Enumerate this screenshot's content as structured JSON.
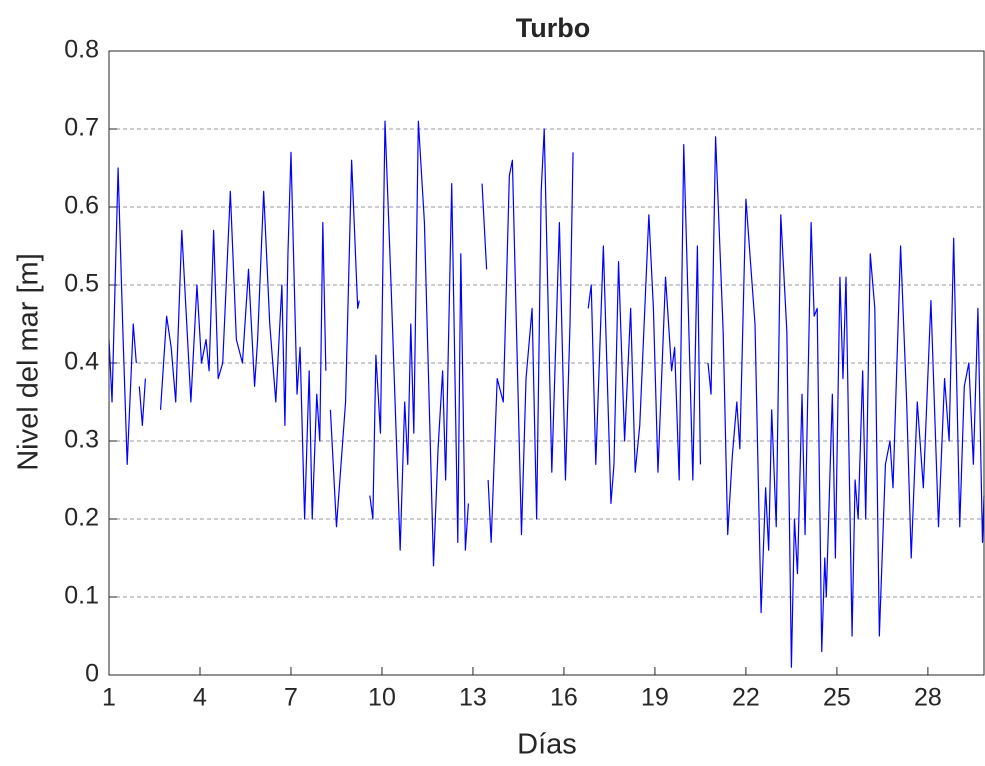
{
  "chart_data": {
    "type": "line",
    "title": "Turbo",
    "x_label": "Días",
    "y_label": "Nivel del mar [m]",
    "color": "#0000ff",
    "grid": true,
    "xlim": [
      1,
      29.85
    ],
    "xticks": [
      1,
      4,
      7,
      10,
      13,
      16,
      19,
      22,
      25,
      28
    ],
    "ylim": [
      0,
      0.8
    ],
    "yticks": [
      0,
      0.1,
      0.2,
      0.3,
      0.4,
      0.5,
      0.6,
      0.7,
      0.8
    ],
    "x": [
      1.0,
      1.1,
      1.3,
      1.45,
      1.6,
      1.8,
      1.9,
      1.95,
      2.0,
      2.1,
      2.2,
      2.4,
      2.7,
      2.9,
      3.05,
      3.2,
      3.4,
      3.7,
      3.9,
      4.05,
      4.2,
      4.3,
      4.45,
      4.6,
      4.75,
      5.0,
      5.2,
      5.4,
      5.6,
      5.8,
      5.9,
      6.1,
      6.3,
      6.5,
      6.7,
      6.8,
      6.9,
      7.0,
      7.2,
      7.3,
      7.45,
      7.6,
      7.7,
      7.85,
      7.95,
      8.05,
      8.15,
      8.2,
      8.3,
      8.5,
      8.8,
      9.0,
      9.2,
      9.25,
      9.4,
      9.6,
      9.7,
      9.8,
      9.95,
      10.1,
      10.3,
      10.6,
      10.75,
      10.85,
      10.95,
      11.05,
      11.2,
      11.4,
      11.7,
      11.85,
      12.0,
      12.1,
      12.3,
      12.5,
      12.6,
      12.75,
      12.85,
      13.0,
      13.3,
      13.45,
      13.48,
      13.5,
      13.6,
      13.8,
      14.0,
      14.2,
      14.3,
      14.6,
      14.75,
      14.95,
      15.1,
      15.25,
      15.35,
      15.6,
      15.75,
      15.85,
      16.05,
      16.2,
      16.3,
      16.5,
      16.8,
      16.9,
      17.05,
      17.3,
      17.55,
      17.65,
      17.8,
      18.0,
      18.2,
      18.35,
      18.5,
      18.8,
      18.95,
      19.1,
      19.35,
      19.55,
      19.65,
      19.8,
      19.95,
      20.1,
      20.25,
      20.4,
      20.5,
      20.6,
      20.75,
      20.85,
      21.0,
      21.25,
      21.4,
      21.55,
      21.7,
      21.8,
      22.0,
      22.3,
      22.5,
      22.65,
      22.75,
      22.85,
      23.0,
      23.15,
      23.35,
      23.5,
      23.6,
      23.7,
      23.85,
      23.95,
      24.15,
      24.25,
      24.35,
      24.5,
      24.6,
      24.65,
      24.85,
      24.95,
      25.1,
      25.2,
      25.3,
      25.5,
      25.6,
      25.7,
      25.85,
      25.95,
      26.1,
      26.25,
      26.4,
      26.6,
      26.75,
      26.85,
      27.1,
      27.3,
      27.45,
      27.65,
      27.85,
      28.1,
      28.35,
      28.55,
      28.7,
      28.85,
      29.05,
      29.2,
      29.35,
      29.5,
      29.65,
      29.8,
      29.85
    ],
    "values": [
      0.43,
      0.35,
      0.65,
      0.45,
      0.27,
      0.45,
      0.4,
      null,
      0.37,
      0.32,
      0.38,
      null,
      0.34,
      0.46,
      0.42,
      0.35,
      0.57,
      0.35,
      0.5,
      0.4,
      0.43,
      0.39,
      0.57,
      0.38,
      0.4,
      0.62,
      0.43,
      0.4,
      0.52,
      0.37,
      0.43,
      0.62,
      0.45,
      0.35,
      0.5,
      0.32,
      0.54,
      0.67,
      0.36,
      0.42,
      0.2,
      0.39,
      0.2,
      0.36,
      0.3,
      0.58,
      0.39,
      null,
      0.34,
      0.19,
      0.35,
      0.66,
      0.47,
      0.48,
      null,
      0.23,
      0.2,
      0.41,
      0.31,
      0.71,
      0.5,
      0.16,
      0.35,
      0.27,
      0.45,
      0.31,
      0.71,
      0.58,
      0.14,
      0.29,
      0.39,
      0.25,
      0.63,
      0.17,
      0.54,
      0.16,
      0.22,
      null,
      0.63,
      0.52,
      null,
      0.25,
      0.17,
      0.38,
      0.35,
      0.64,
      0.66,
      0.18,
      0.38,
      0.47,
      0.2,
      0.62,
      0.7,
      0.26,
      0.45,
      0.58,
      0.25,
      0.45,
      0.67,
      null,
      0.47,
      0.5,
      0.27,
      0.55,
      0.22,
      0.27,
      0.53,
      0.3,
      0.47,
      0.26,
      0.32,
      0.59,
      0.47,
      0.26,
      0.51,
      0.39,
      0.42,
      0.25,
      0.68,
      0.47,
      0.25,
      0.55,
      0.27,
      null,
      0.4,
      0.36,
      0.69,
      0.44,
      0.18,
      0.28,
      0.35,
      0.29,
      0.61,
      0.45,
      0.08,
      0.24,
      0.16,
      0.34,
      0.19,
      0.59,
      0.44,
      0.01,
      0.2,
      0.13,
      0.36,
      0.18,
      0.58,
      0.46,
      0.47,
      0.03,
      0.15,
      0.1,
      0.36,
      0.15,
      0.51,
      0.38,
      0.51,
      0.05,
      0.25,
      0.2,
      0.39,
      0.2,
      0.54,
      0.47,
      0.05,
      0.27,
      0.3,
      0.24,
      0.55,
      0.35,
      0.15,
      0.35,
      0.24,
      0.48,
      0.19,
      0.38,
      0.3,
      0.56,
      0.19,
      0.37,
      0.4,
      0.27,
      0.47,
      0.17,
      0.23
    ]
  }
}
